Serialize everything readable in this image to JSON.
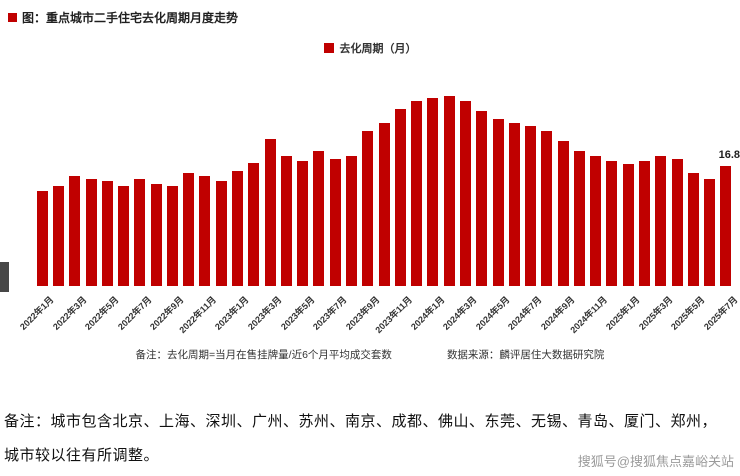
{
  "page": {
    "title": "图：重点城市二手住宅去化周期月度走势",
    "note_line1": "备注：城市包含北京、上海、深圳、广州、苏州、南京、成都、佛山、东莞、无锡、青岛、厦门、郑州，",
    "note_line2": "城市较以往有所调整。",
    "watermark": "搜狐号@搜狐焦点嘉峪关站"
  },
  "chart_data": {
    "type": "bar",
    "title": "重点城市二手住宅去化周期月度走势",
    "legend": "去化周期（月）",
    "footnote": "备注：去化周期=当月在售挂牌量/近6个月平均成交套数",
    "source": "数据来源：麟评居住大数据研究院",
    "bar_color": "#c00000",
    "ylim": [
      0,
      28
    ],
    "grid": false,
    "legend_position": "top-center",
    "last_value_label": "16.8",
    "categories": [
      "2022年1月",
      "2022年2月",
      "2022年3月",
      "2022年4月",
      "2022年5月",
      "2022年6月",
      "2022年7月",
      "2022年8月",
      "2022年9月",
      "2022年10月",
      "2022年11月",
      "2022年12月",
      "2023年1月",
      "2023年2月",
      "2023年3月",
      "2023年4月",
      "2023年5月",
      "2023年6月",
      "2023年7月",
      "2023年8月",
      "2023年9月",
      "2023年10月",
      "2023年11月",
      "2023年12月",
      "2024年1月",
      "2024年2月",
      "2024年3月",
      "2024年4月",
      "2024年5月",
      "2024年6月",
      "2024年7月",
      "2024年8月",
      "2024年9月",
      "2024年10月",
      "2024年11月",
      "2024年12月",
      "2025年1月",
      "2025年2月",
      "2025年3月",
      "2025年4月",
      "2025年5月",
      "2025年6月",
      "2025年7月"
    ],
    "values": [
      13.3,
      14.0,
      15.4,
      15.0,
      14.7,
      14.0,
      15.0,
      14.3,
      14.0,
      15.8,
      15.4,
      14.7,
      16.1,
      17.2,
      20.6,
      18.2,
      17.5,
      18.9,
      17.8,
      18.2,
      21.7,
      22.8,
      24.8,
      25.9,
      26.3,
      26.6,
      25.9,
      24.5,
      23.4,
      22.8,
      22.4,
      21.7,
      20.3,
      18.9,
      18.2,
      17.5,
      17.1,
      17.5,
      18.2,
      17.8,
      15.8,
      15.0,
      16.8
    ],
    "x_ticks": [
      "2022年1月",
      "2022年3月",
      "2022年5月",
      "2022年7月",
      "2022年9月",
      "2022年11月",
      "2023年1月",
      "2023年3月",
      "2023年5月",
      "2023年7月",
      "2023年9月",
      "2023年11月",
      "2024年1月",
      "2024年3月",
      "2024年5月",
      "2024年7月",
      "2024年9月",
      "2024年11月",
      "2025年1月",
      "2025年3月",
      "2025年5月",
      "2025年7月"
    ]
  }
}
